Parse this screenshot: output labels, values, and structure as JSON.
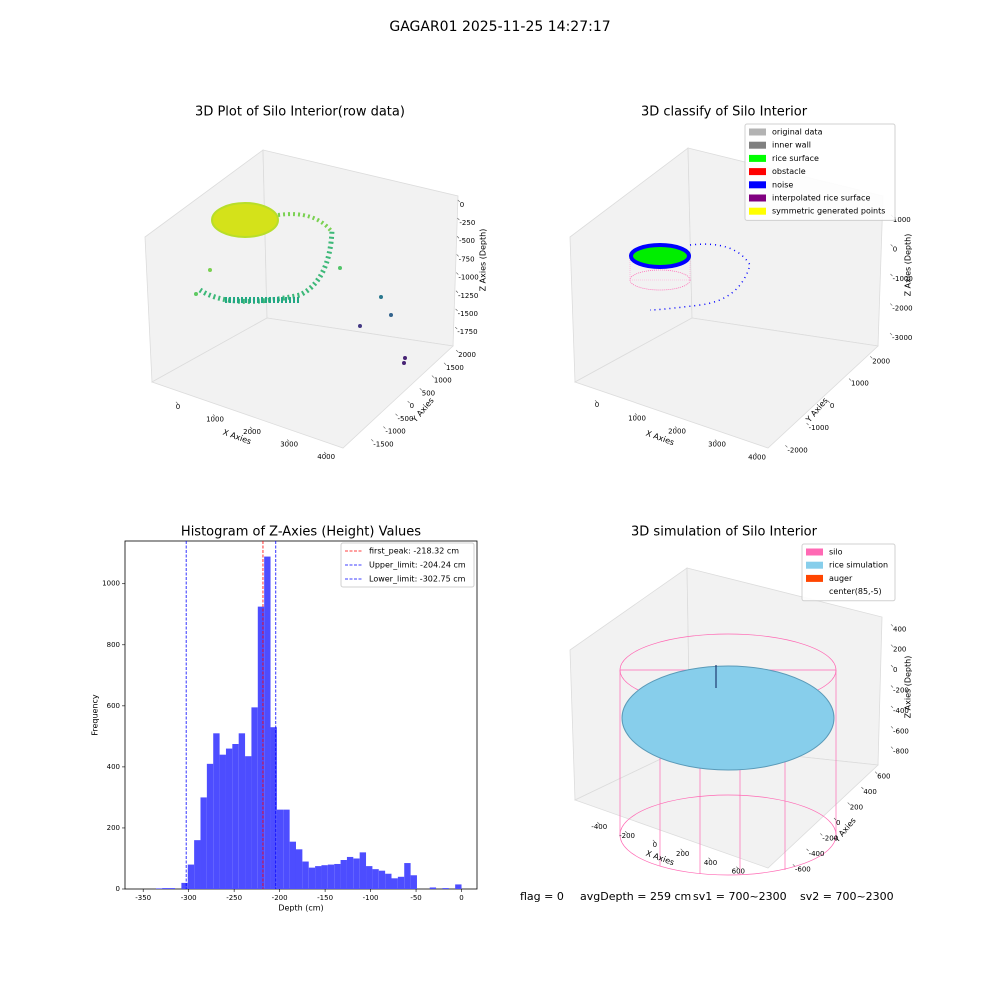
{
  "title": "GAGAR01 2025-11-25 14:27:17",
  "footer": [
    "flag = 0",
    "avgDepth = 259 cm",
    "sv1 = 700~2300",
    "sv2 = 700~2300"
  ],
  "chart_data": [
    {
      "type": "scatter3d",
      "title": "3D Plot of Silo Interior(row data)",
      "xlabel": "X Axies",
      "ylabel": "Y Axies",
      "zlabel": "Z Axies (Depth)",
      "xlim": [
        -700,
        4400
      ],
      "ylim": [
        -1800,
        2200
      ],
      "zlim": [
        -1900,
        150
      ],
      "xticks": [
        0,
        1000,
        2000,
        3000,
        4000
      ],
      "yticks": [
        -1500,
        -1000,
        -500,
        0,
        500,
        1000,
        1500,
        2000
      ],
      "zticks": [
        0,
        -250,
        -500,
        -750,
        -1000,
        -1250,
        -1500,
        -1750
      ]
    },
    {
      "type": "scatter3d",
      "title": "3D classify of Silo Interior",
      "xlabel": "X Axies",
      "ylabel": "Y Axies",
      "zlabel": "Z Axies (Depth)",
      "xlim": [
        -700,
        4400
      ],
      "ylim": [
        -2300,
        2600
      ],
      "zlim": [
        -3200,
        1300
      ],
      "xticks": [
        0,
        1000,
        2000,
        3000,
        4000
      ],
      "yticks": [
        -2000,
        -1000,
        0,
        1000,
        2000
      ],
      "zticks": [
        1000,
        0,
        -1000,
        -2000,
        -3000
      ],
      "legend": [
        {
          "name": "original data",
          "color": "#b3b3b3"
        },
        {
          "name": "inner wall",
          "color": "#808080"
        },
        {
          "name": "rice surface",
          "color": "#00ff00"
        },
        {
          "name": "obstacle",
          "color": "#ff0000"
        },
        {
          "name": "noise",
          "color": "#0000ff"
        },
        {
          "name": "interpolated rice surface",
          "color": "#800080"
        },
        {
          "name": "symmetric generated points",
          "color": "#ffff00"
        }
      ]
    },
    {
      "type": "histogram",
      "title": "Histogram of Z-Axies (Height) Values",
      "xlabel": "Depth (cm)",
      "ylabel": "Frequency",
      "color": "#4d4dff",
      "bins": [
        -336,
        -329,
        -322,
        -315,
        -308,
        -301,
        -294,
        -287,
        -280,
        -273,
        -266,
        -259,
        -252,
        -245,
        -238,
        -231,
        -224,
        -217,
        -210,
        -203,
        -196,
        -189,
        -182,
        -175,
        -168,
        -161,
        -154,
        -147,
        -140,
        -133,
        -126,
        -119,
        -112,
        -105,
        -98,
        -91,
        -84,
        -77,
        -70,
        -63,
        -56,
        -49,
        -42,
        -35,
        -28,
        -21,
        -14,
        -7,
        0
      ],
      "values": [
        2,
        3,
        3,
        0,
        20,
        80,
        160,
        300,
        410,
        510,
        440,
        460,
        475,
        510,
        435,
        595,
        925,
        1089,
        530,
        260,
        260,
        155,
        130,
        90,
        70,
        75,
        78,
        80,
        82,
        95,
        105,
        100,
        120,
        75,
        65,
        60,
        50,
        35,
        40,
        85,
        45,
        0,
        0,
        5,
        0,
        3,
        0,
        15
      ],
      "xlim": [
        -370,
        17
      ],
      "ylim": [
        0,
        1140
      ],
      "xticks": [
        -350,
        -300,
        -250,
        -200,
        -150,
        -100,
        -50,
        0
      ],
      "yticks": [
        0,
        200,
        400,
        600,
        800,
        1000
      ],
      "lines": [
        {
          "name": "first_peak: -218.32 cm",
          "value": -218.32,
          "color": "#ff0000"
        },
        {
          "name": "Upper_limit: -204.24 cm",
          "value": -204.24,
          "color": "#0000ff"
        },
        {
          "name": "Lower_limit: -302.75 cm",
          "value": -302.75,
          "color": "#0000ff"
        }
      ]
    },
    {
      "type": "scatter3d",
      "title": "3D simulation of Silo Interior",
      "xlabel": "X Axies",
      "ylabel": "Y Axies",
      "zlabel": "Z Axies (Depth)",
      "xlim": [
        -560,
        720
      ],
      "ylim": [
        -700,
        700
      ],
      "zlim": [
        -950,
        560
      ],
      "xticks": [
        -400,
        -200,
        0,
        200,
        400,
        600
      ],
      "yticks": [
        -600,
        -400,
        -200,
        0,
        200,
        400,
        600
      ],
      "zticks": [
        400,
        200,
        0,
        -200,
        -400,
        -600,
        -800
      ],
      "legend": [
        {
          "name": "silo",
          "color": "#ff69b4"
        },
        {
          "name": "rice simulation",
          "color": "#87ceeb"
        },
        {
          "name": "auger",
          "color": "#ff4500"
        },
        {
          "name": "center(85,-5)",
          "color": "none"
        }
      ]
    }
  ]
}
